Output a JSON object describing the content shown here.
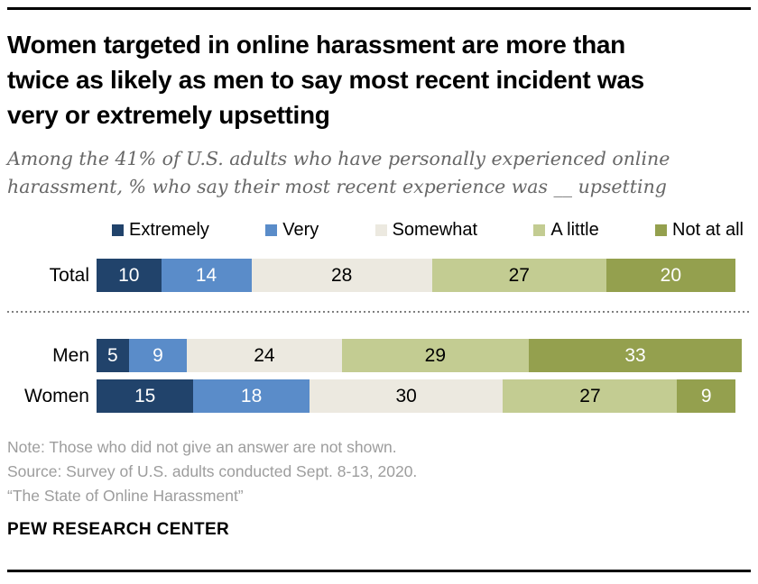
{
  "header": {
    "title_lines": [
      "Women targeted in online harassment are more than",
      "twice as likely as men to say most recent incident was",
      "very or extremely upsetting"
    ],
    "subtitle_lines": [
      "Among the 41% of U.S. adults who have personally experienced online",
      "harassment, % who say their most recent experience was __ upsetting"
    ]
  },
  "chart_data": {
    "type": "bar",
    "stacked": true,
    "orientation": "horizontal",
    "unit": "%",
    "xlim": [
      0,
      100
    ],
    "grid": false,
    "legend_position": "top",
    "categories": [
      "Total",
      "Men",
      "Women"
    ],
    "series": [
      {
        "name": "Extremely",
        "color": "#21436b",
        "label_color": "#ffffff",
        "values": [
          10,
          5,
          15
        ]
      },
      {
        "name": "Very",
        "color": "#5a8cc9",
        "label_color": "#ffffff",
        "values": [
          14,
          9,
          18
        ]
      },
      {
        "name": "Somewhat",
        "color": "#ece9e0",
        "label_color": "#000000",
        "values": [
          28,
          24,
          30
        ]
      },
      {
        "name": "A little",
        "color": "#c3cc92",
        "label_color": "#000000",
        "values": [
          27,
          29,
          27
        ]
      },
      {
        "name": "Not at all",
        "color": "#94a04e",
        "label_color": "#ffffff",
        "values": [
          20,
          33,
          9
        ]
      }
    ]
  },
  "footer": {
    "note": "Note: Those who did not give an answer are not shown.",
    "source": "Source: Survey of U.S. adults conducted Sept. 8-13, 2020.",
    "report": "“The State of Online Harassment”",
    "brand": "PEW RESEARCH CENTER"
  }
}
